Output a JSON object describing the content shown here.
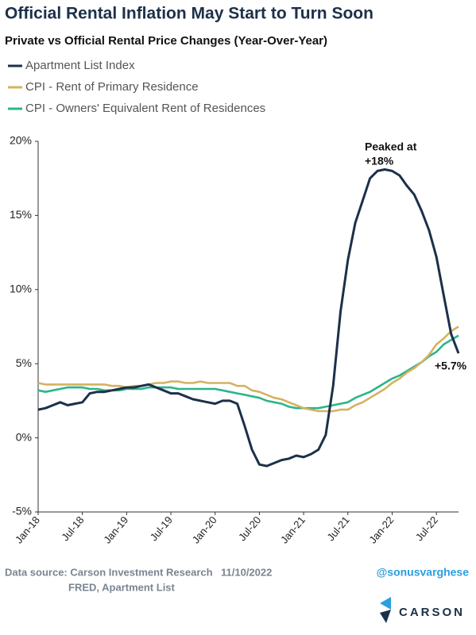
{
  "chart_data": {
    "type": "line",
    "title": "Official Rental Inflation May Start to Turn Soon",
    "subtitle": "Private vs Official Rental Price Changes (Year-Over-Year)",
    "categories": [
      "Jan-18",
      null,
      null,
      null,
      null,
      null,
      "Jul-18",
      null,
      null,
      null,
      null,
      null,
      "Jan-19",
      null,
      null,
      null,
      null,
      null,
      "Jul-19",
      null,
      null,
      null,
      null,
      null,
      "Jan-20",
      null,
      null,
      null,
      null,
      null,
      "Jul-20",
      null,
      null,
      null,
      null,
      null,
      "Jan-21",
      null,
      null,
      null,
      null,
      null,
      "Jul-21",
      null,
      null,
      null,
      null,
      null,
      "Jan-22",
      null,
      null,
      null,
      null,
      null,
      "Jul-22",
      null,
      null,
      null
    ],
    "series": [
      {
        "name": "Apartment List Index",
        "color": "#1c3049",
        "values": [
          1.9,
          2.0,
          2.2,
          2.4,
          2.2,
          2.3,
          2.4,
          3.0,
          3.1,
          3.1,
          3.2,
          3.3,
          3.4,
          3.4,
          3.5,
          3.6,
          3.4,
          3.2,
          3.0,
          3.0,
          2.8,
          2.6,
          2.5,
          2.4,
          2.3,
          2.5,
          2.5,
          2.3,
          0.8,
          -0.8,
          -1.8,
          -1.9,
          -1.7,
          -1.5,
          -1.4,
          -1.2,
          -1.3,
          -1.1,
          -0.8,
          0.2,
          3.5,
          8.5,
          12.0,
          14.5,
          16.0,
          17.5,
          18.0,
          18.1,
          18.0,
          17.7,
          17.0,
          16.4,
          15.3,
          14.0,
          12.2,
          9.6,
          7.0,
          5.7
        ]
      },
      {
        "name": "CPI - Rent of Primary Residence",
        "color": "#d4b261",
        "values": [
          3.7,
          3.6,
          3.6,
          3.6,
          3.6,
          3.6,
          3.6,
          3.6,
          3.6,
          3.6,
          3.5,
          3.5,
          3.4,
          3.5,
          3.5,
          3.6,
          3.7,
          3.7,
          3.8,
          3.8,
          3.7,
          3.7,
          3.8,
          3.7,
          3.7,
          3.7,
          3.7,
          3.5,
          3.5,
          3.2,
          3.1,
          2.9,
          2.7,
          2.6,
          2.4,
          2.2,
          2.0,
          1.9,
          1.8,
          1.8,
          1.8,
          1.9,
          1.9,
          2.2,
          2.4,
          2.7,
          3.0,
          3.3,
          3.7,
          4.0,
          4.4,
          4.7,
          5.1,
          5.6,
          6.3,
          6.7,
          7.2,
          7.5
        ]
      },
      {
        "name": "CPI - Owners' Equivalent Rent of Residences",
        "color": "#2bb58a",
        "values": [
          3.2,
          3.1,
          3.2,
          3.3,
          3.4,
          3.4,
          3.4,
          3.3,
          3.3,
          3.2,
          3.2,
          3.2,
          3.3,
          3.3,
          3.3,
          3.4,
          3.4,
          3.4,
          3.4,
          3.3,
          3.3,
          3.3,
          3.3,
          3.3,
          3.3,
          3.2,
          3.1,
          3.0,
          2.9,
          2.8,
          2.7,
          2.5,
          2.4,
          2.3,
          2.1,
          2.0,
          2.0,
          2.0,
          2.0,
          2.1,
          2.2,
          2.3,
          2.4,
          2.7,
          2.9,
          3.1,
          3.4,
          3.7,
          4.0,
          4.2,
          4.5,
          4.8,
          5.1,
          5.5,
          5.8,
          6.3,
          6.6,
          6.9
        ]
      }
    ],
    "ylim": [
      -5,
      20
    ],
    "yticks": [
      {
        "value": -5,
        "label": "-5%"
      },
      {
        "value": 0,
        "label": "0%"
      },
      {
        "value": 5,
        "label": "5%"
      },
      {
        "value": 10,
        "label": "10%"
      },
      {
        "value": 15,
        "label": "15%"
      },
      {
        "value": 20,
        "label": "20%"
      }
    ],
    "annotations": [
      "Peaked at",
      "+18%",
      "+5.7%"
    ],
    "source": [
      "Data source: Carson Investment Research",
      "11/10/2022",
      "FRED, Apartment List"
    ],
    "handle": "@sonusvarghese",
    "brand": "CARSON"
  }
}
